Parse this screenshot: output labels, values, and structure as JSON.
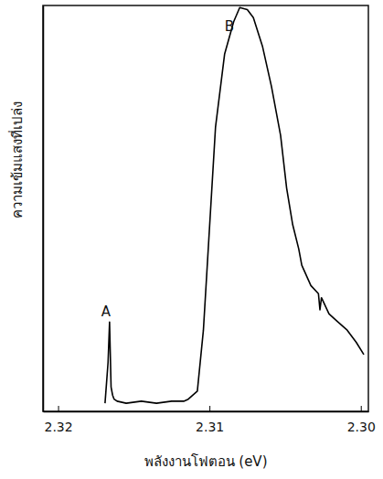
{
  "chart_data": {
    "type": "line",
    "x_label": "พลังงานโฟตอน (eV)",
    "y_label": "ความเข้มแสงที่เปล่ง",
    "x": [
      2.3169,
      2.3167,
      2.3166,
      2.3165,
      2.3164,
      2.3163,
      2.3161,
      2.3155,
      2.3145,
      2.3135,
      2.3125,
      2.3117,
      2.3114,
      2.3108,
      2.3104,
      2.31,
      2.3096,
      2.309,
      2.3084,
      2.308,
      2.3075,
      2.3071,
      2.3065,
      2.3059,
      2.3053,
      2.3049,
      2.3045,
      2.3041,
      2.3039,
      2.3033,
      2.3028,
      2.3027,
      2.3026,
      2.3021,
      2.3015,
      2.3009,
      2.3003,
      2.2998
    ],
    "values": [
      2,
      12,
      22,
      6,
      4,
      3,
      2.5,
      2,
      2.5,
      2,
      2.5,
      2.5,
      3,
      5,
      20,
      45,
      70,
      88,
      96,
      99.5,
      99,
      97,
      90,
      80,
      68,
      55,
      46,
      40,
      36,
      31,
      29,
      25,
      28,
      24,
      22,
      20,
      17,
      14
    ],
    "color": "#000000",
    "xlim": [
      2.321,
      2.2995
    ],
    "xticks": [
      2.32,
      2.31,
      {
        "value": 2.3,
        "label": "2.30"
      }
    ],
    "ylim": [
      0,
      100
    ],
    "tick_labels": "x",
    "annotations": [
      {
        "text": "A",
        "x": 2.3166,
        "y": 22
      },
      {
        "text": "B",
        "x": 2.3082,
        "y": 99.5
      }
    ]
  }
}
